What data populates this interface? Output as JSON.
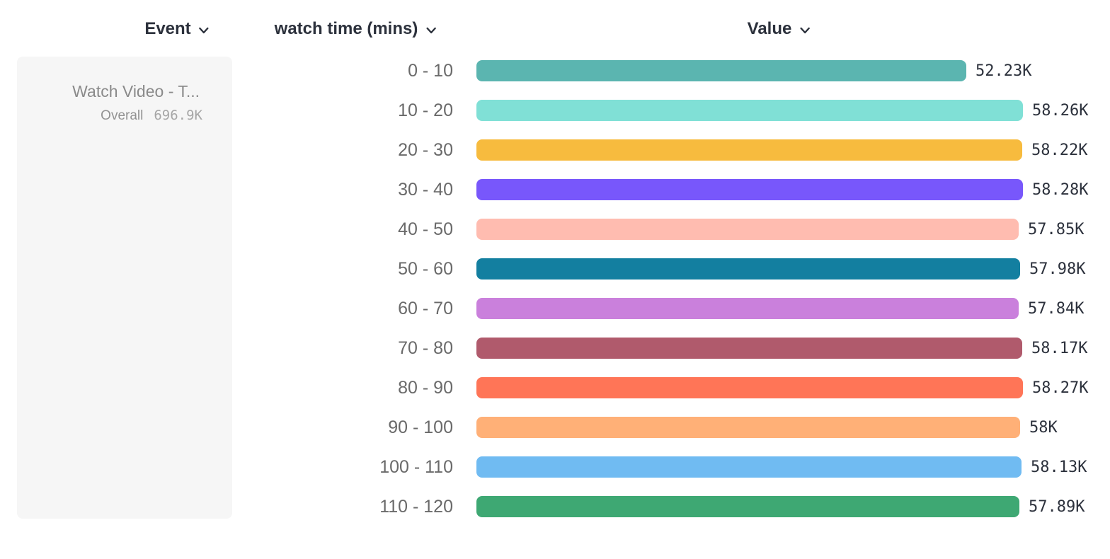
{
  "header": {
    "columns": [
      {
        "label": "Event",
        "icon": "chevron-down"
      },
      {
        "label": "watch time (mins)",
        "icon": "chevron-down"
      },
      {
        "label": "Value",
        "icon": "chevron-down"
      }
    ]
  },
  "legend": {
    "event_name": "Watch Video - T...",
    "overall_label": "Overall",
    "overall_value": "696.9K"
  },
  "chart_data": {
    "type": "bar",
    "orientation": "horizontal",
    "categories": [
      "0 - 10",
      "10 - 20",
      "20 - 30",
      "30 - 40",
      "40 - 50",
      "50 - 60",
      "60 - 70",
      "70 - 80",
      "80 - 90",
      "90 - 100",
      "100 - 110",
      "110 - 120"
    ],
    "values": [
      52230,
      58260,
      58220,
      58280,
      57850,
      57980,
      57840,
      58170,
      58270,
      58000,
      58130,
      57890
    ],
    "value_labels": [
      "52.23K",
      "58.26K",
      "58.22K",
      "58.28K",
      "57.85K",
      "57.98K",
      "57.84K",
      "58.17K",
      "58.27K",
      "58K",
      "58.13K",
      "57.89K"
    ],
    "bar_colors": [
      "#5bb5b0",
      "#80e0d6",
      "#f7bb3e",
      "#7857fb",
      "#ffbcb0",
      "#137fa0",
      "#ca80dc",
      "#b05a6c",
      "#ff7557",
      "#ffb077",
      "#70bbf2",
      "#3ea873"
    ],
    "xlabel": "Value",
    "ylabel": "watch time (mins)",
    "xlim": [
      0,
      58280
    ],
    "grid": false,
    "legend_position": "left"
  },
  "ui_colors": {
    "header_text": "#2c313c",
    "category_label": "#6a6a6a",
    "value_label": "#2c313c",
    "legend_bg": "#f6f6f6",
    "legend_event_text": "#8a8a8a",
    "legend_overall_text": "#929292",
    "legend_value_text": "#a6a6a6",
    "background": "#ffffff"
  }
}
